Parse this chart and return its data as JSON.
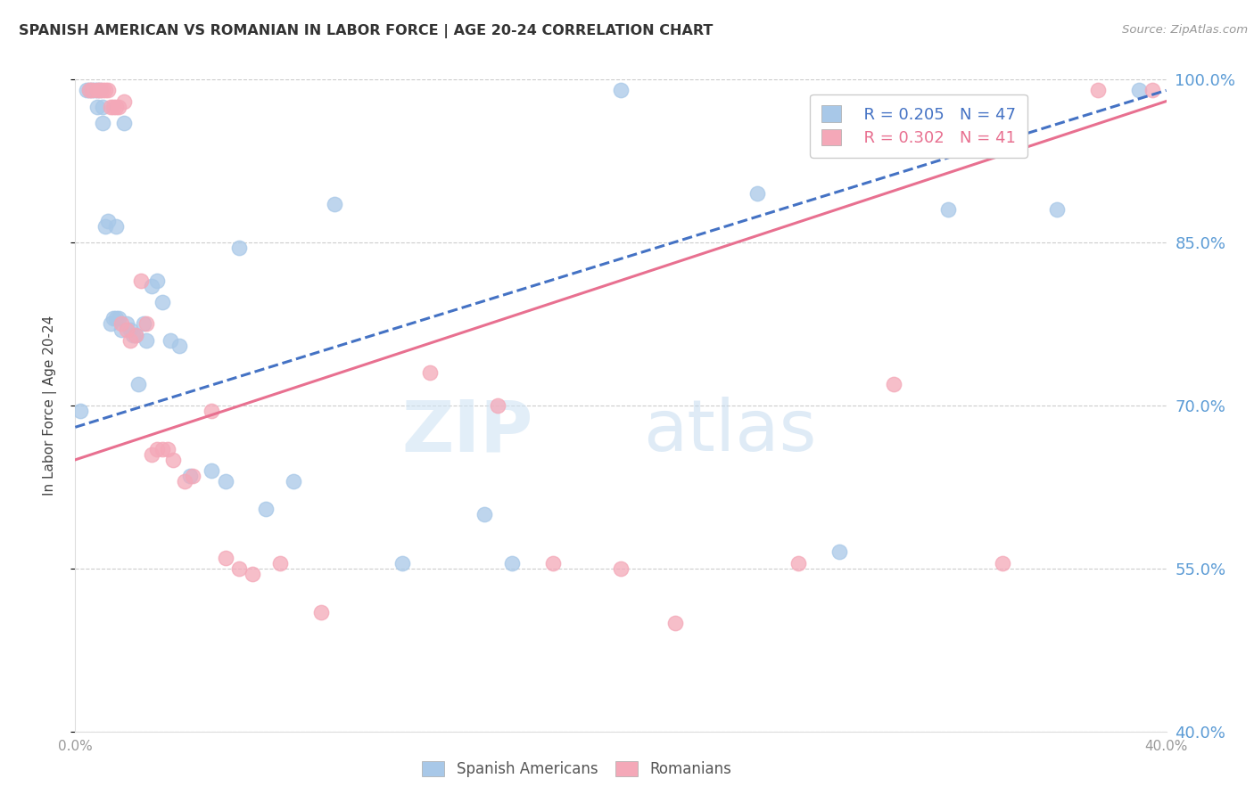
{
  "title": "SPANISH AMERICAN VS ROMANIAN IN LABOR FORCE | AGE 20-24 CORRELATION CHART",
  "source": "Source: ZipAtlas.com",
  "ylabel": "In Labor Force | Age 20-24",
  "legend_blue_r": "R = 0.205",
  "legend_blue_n": "N = 47",
  "legend_pink_r": "R = 0.302",
  "legend_pink_n": "N = 41",
  "xlim": [
    0.0,
    0.4
  ],
  "ylim": [
    0.4,
    1.0
  ],
  "yticks": [
    0.4,
    0.55,
    0.7,
    0.85,
    1.0
  ],
  "ytick_labels": [
    "40.0%",
    "55.0%",
    "70.0%",
    "85.0%",
    "100.0%"
  ],
  "xticks": [
    0.0,
    0.08,
    0.16,
    0.24,
    0.32,
    0.4
  ],
  "xtick_labels": [
    "0.0%",
    "",
    "",
    "",
    "",
    "40.0%"
  ],
  "blue_scatter_color": "#a8c8e8",
  "pink_scatter_color": "#f4a8b8",
  "blue_line_color": "#4472c4",
  "pink_line_color": "#e87090",
  "blue_line_x": [
    0.0,
    0.4
  ],
  "blue_line_y": [
    0.68,
    0.99
  ],
  "pink_line_x": [
    0.0,
    0.4
  ],
  "pink_line_y": [
    0.65,
    0.98
  ],
  "blue_x": [
    0.002,
    0.004,
    0.005,
    0.006,
    0.007,
    0.008,
    0.008,
    0.009,
    0.01,
    0.01,
    0.011,
    0.012,
    0.013,
    0.014,
    0.015,
    0.015,
    0.016,
    0.017,
    0.018,
    0.019,
    0.02,
    0.021,
    0.022,
    0.023,
    0.025,
    0.026,
    0.028,
    0.03,
    0.032,
    0.035,
    0.038,
    0.042,
    0.05,
    0.055,
    0.06,
    0.07,
    0.08,
    0.095,
    0.12,
    0.15,
    0.16,
    0.2,
    0.25,
    0.28,
    0.32,
    0.36,
    0.39
  ],
  "blue_y": [
    0.695,
    0.99,
    0.99,
    0.99,
    0.99,
    0.99,
    0.975,
    0.99,
    0.975,
    0.96,
    0.865,
    0.87,
    0.775,
    0.78,
    0.78,
    0.865,
    0.78,
    0.77,
    0.96,
    0.775,
    0.77,
    0.765,
    0.765,
    0.72,
    0.775,
    0.76,
    0.81,
    0.815,
    0.795,
    0.76,
    0.755,
    0.635,
    0.64,
    0.63,
    0.845,
    0.605,
    0.63,
    0.885,
    0.555,
    0.6,
    0.555,
    0.99,
    0.895,
    0.565,
    0.88,
    0.88,
    0.99
  ],
  "pink_x": [
    0.005,
    0.006,
    0.008,
    0.009,
    0.01,
    0.011,
    0.012,
    0.013,
    0.014,
    0.015,
    0.016,
    0.017,
    0.018,
    0.019,
    0.02,
    0.022,
    0.024,
    0.026,
    0.028,
    0.03,
    0.032,
    0.034,
    0.036,
    0.04,
    0.043,
    0.05,
    0.055,
    0.06,
    0.065,
    0.075,
    0.09,
    0.13,
    0.155,
    0.175,
    0.2,
    0.22,
    0.265,
    0.3,
    0.34,
    0.375,
    0.395
  ],
  "pink_y": [
    0.99,
    0.99,
    0.99,
    0.99,
    0.99,
    0.99,
    0.99,
    0.975,
    0.975,
    0.975,
    0.975,
    0.775,
    0.98,
    0.77,
    0.76,
    0.765,
    0.815,
    0.775,
    0.655,
    0.66,
    0.66,
    0.66,
    0.65,
    0.63,
    0.635,
    0.695,
    0.56,
    0.55,
    0.545,
    0.555,
    0.51,
    0.73,
    0.7,
    0.555,
    0.55,
    0.5,
    0.555,
    0.72,
    0.555,
    0.99,
    0.99
  ],
  "background_color": "#ffffff",
  "grid_color": "#cccccc"
}
